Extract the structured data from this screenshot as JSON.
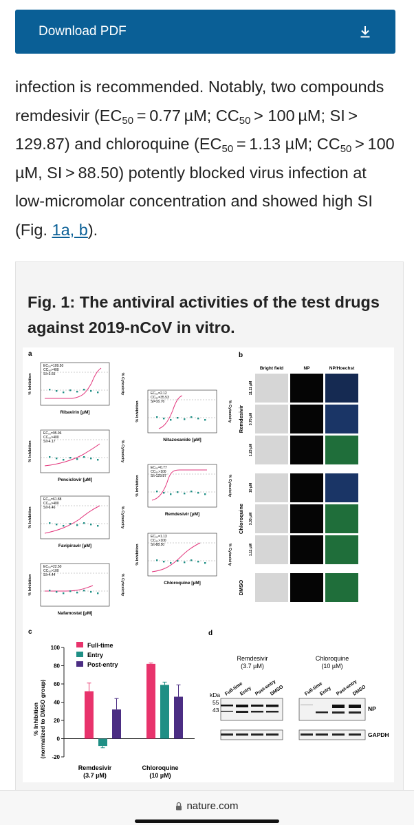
{
  "download": {
    "label": "Download PDF",
    "icon": "download-icon"
  },
  "paragraph": {
    "p1": "infection is recommended. Notably, two compounds remdesivir (EC",
    "p2": " = 0.77 µM; CC",
    "p3": " > 100 µM; SI > 129.87) and chloroquine (EC",
    "p4": " = 1.13 µM; CC",
    "p5": " > 100 µM, SI > 88.50) potently blocked virus infection at low-micromolar concentration and showed high SI (Fig. ",
    "sub": "50",
    "link": "1a, b",
    "end": ")."
  },
  "figure": {
    "title": "Fig. 1: The antiviral activities of the test drugs against 2019-nCoV in vitro.",
    "panel_a": {
      "label": "a",
      "y_left": "% Inhibition",
      "y_right": "% Cytoxicity",
      "plots": [
        {
          "name": "Ribavirin [µM]",
          "ec": "EC₅₀=109.50",
          "cc": "CC₅₀>400",
          "si": "SI>3.65"
        },
        {
          "name": "Penciclovir [µM]",
          "ec": "EC₅₀=95.96",
          "cc": "CC₅₀>400",
          "si": "SI>4.17"
        },
        {
          "name": "Favipiravir [µM]",
          "ec": "EC₅₀=61.88",
          "cc": "CC₅₀>400",
          "si": "SI>6.46"
        },
        {
          "name": "Nafamostat [µM]",
          "ec": "EC₅₀=22.50",
          "cc": "CC₅₀>100",
          "si": "SI>4.44"
        },
        {
          "name": "Nitazoxanide [µM]",
          "ec": "EC₅₀=2.12",
          "cc": "CC₅₀=35.53",
          "si": "SI=16.76"
        },
        {
          "name": "Remdesivir [µM]",
          "ec": "EC₅₀=0.77",
          "cc": "CC₅₀>100",
          "si": "SI>129.87"
        },
        {
          "name": "Chloroquine [µM]",
          "ec": "EC₅₀=1.13",
          "cc": "CC₅₀>100",
          "si": "SI>88.50"
        }
      ]
    },
    "panel_b": {
      "label": "b",
      "cols": [
        "Bright field",
        "NP",
        "NP/Hoechst"
      ],
      "groups": [
        {
          "name": "Remdesivir",
          "doses": [
            "11.11 µM",
            "3.70 µM",
            "1.23 µM"
          ]
        },
        {
          "name": "Chloroquine",
          "doses": [
            "10 µM",
            "3.33 µM",
            "1.11 µM"
          ]
        },
        {
          "name": "DMSO",
          "doses": [
            ""
          ]
        }
      ]
    },
    "panel_c": {
      "label": "c",
      "ylabel": "% Inhibition",
      "ylabel2": "(normalized to DMSO group)",
      "legend": [
        "Full-time",
        "Entry",
        "Post-entry"
      ],
      "groups": [
        "Remdesivir",
        "Chloroquine"
      ],
      "group_sub": [
        "(3.7 µM)",
        "(10 µM)"
      ],
      "ticks": [
        "100",
        "80",
        "60",
        "40",
        "20",
        "0",
        "-20"
      ],
      "colors": [
        "#e8336c",
        "#1f8f85",
        "#4b2d83"
      ]
    },
    "panel_d": {
      "label": "d",
      "g1": "Remdesivir",
      "g1sub": "(3.7 µM)",
      "g2": "Chloroquine",
      "g2sub": "(10 µM)",
      "lanes": [
        "Full-time",
        "Entry",
        "Post-entry",
        "DMSO"
      ],
      "kda": "kDa",
      "k55": "55",
      "k43": "43",
      "np": "NP",
      "gapdh": "GAPDH"
    }
  },
  "chart_data": {
    "type": "bar",
    "categories": [
      "Remdesivir (3.7 µM)",
      "Chloroquine (10 µM)"
    ],
    "series": [
      {
        "name": "Full-time",
        "values": [
          52,
          82
        ]
      },
      {
        "name": "Entry",
        "values": [
          -8,
          59
        ]
      },
      {
        "name": "Post-entry",
        "values": [
          32,
          46
        ]
      }
    ],
    "errors": [
      [
        9,
        1
      ],
      [
        2,
        3
      ],
      [
        12,
        13
      ]
    ],
    "ylabel": "% Inhibition (normalized to DMSO group)",
    "ylim": [
      -20,
      100
    ]
  },
  "browser": {
    "url": "nature.com",
    "lock_icon": "lock-icon"
  }
}
